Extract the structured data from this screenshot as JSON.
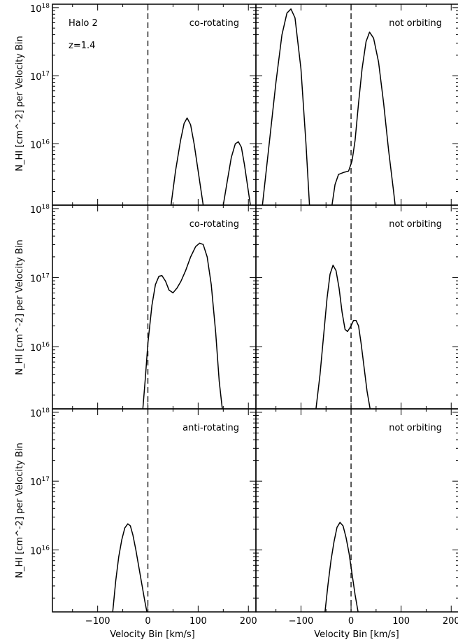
{
  "figure": {
    "ylabel": "N_HI [cm^-2] per Velocity Bin",
    "xlabel": "Velocity Bin [km/s]",
    "halo_label": "Halo 2",
    "redshift_label": "z=1.4"
  },
  "chart_data": [
    {
      "type": "line",
      "row": 0,
      "col": 0,
      "label": "co-rotating",
      "xlabel": "Velocity Bin [km/s]",
      "ylabel": "N_HI [cm^-2] per Velocity Bin",
      "xlim": [
        -190,
        215
      ],
      "ylim_log10": [
        15.1,
        18.05
      ],
      "x_ticks": [
        -100,
        0,
        100,
        200
      ],
      "y_tick_labels": [
        "10^16",
        "10^17",
        "10^18"
      ],
      "series": [
        {
          "x": [
            46,
            55,
            65,
            72,
            78,
            85,
            92,
            100,
            110
          ],
          "log10_y": [
            15.1,
            15.6,
            16.05,
            16.3,
            16.38,
            16.28,
            16.0,
            15.6,
            15.1
          ]
        },
        {
          "x": [
            150,
            158,
            166,
            174,
            180,
            186,
            192,
            198,
            204
          ],
          "log10_y": [
            15.1,
            15.45,
            15.8,
            16.0,
            16.03,
            15.95,
            15.7,
            15.4,
            15.1
          ]
        }
      ]
    },
    {
      "type": "line",
      "row": 0,
      "col": 1,
      "label": "not orbiting",
      "xlabel": "Velocity Bin [km/s]",
      "ylabel": "N_HI [cm^-2] per Velocity Bin",
      "xlim": [
        -190,
        215
      ],
      "ylim_log10": [
        15.1,
        18.05
      ],
      "x_ticks": [
        -100,
        0,
        100,
        200
      ],
      "y_tick_labels": [
        "10^16",
        "10^17",
        "10^18"
      ],
      "series": [
        {
          "x": [
            -177,
            -165,
            -150,
            -138,
            -128,
            -120,
            -112,
            -100,
            -90,
            -83
          ],
          "log10_y": [
            15.1,
            15.9,
            16.9,
            17.6,
            17.92,
            17.98,
            17.85,
            17.1,
            16.0,
            15.1
          ]
        },
        {
          "x": [
            -38,
            -32,
            -25,
            -15,
            -5,
            2,
            8,
            15,
            22,
            30,
            37,
            45,
            55,
            65,
            75,
            85,
            88
          ],
          "log10_y": [
            15.1,
            15.4,
            15.55,
            15.58,
            15.6,
            15.75,
            16.05,
            16.6,
            17.1,
            17.5,
            17.64,
            17.55,
            17.2,
            16.6,
            15.9,
            15.3,
            15.1
          ]
        }
      ]
    },
    {
      "type": "line",
      "row": 1,
      "col": 0,
      "label": "co-rotating",
      "xlabel": "Velocity Bin [km/s]",
      "ylabel": "N_HI [cm^-2] per Velocity Bin",
      "xlim": [
        -190,
        215
      ],
      "ylim_log10": [
        15.1,
        18.05
      ],
      "x_ticks": [
        -100,
        0,
        100,
        200
      ],
      "y_tick_labels": [
        "10^16",
        "10^17",
        "10^18"
      ],
      "series": [
        {
          "x": [
            -10,
            -5,
            0,
            8,
            15,
            22,
            28,
            35,
            42,
            50,
            58,
            66,
            75,
            85,
            95,
            103,
            110,
            118,
            126,
            135,
            142,
            148
          ],
          "log10_y": [
            15.1,
            15.55,
            16.05,
            16.6,
            16.9,
            17.02,
            17.03,
            16.95,
            16.82,
            16.78,
            16.85,
            16.95,
            17.1,
            17.3,
            17.45,
            17.5,
            17.48,
            17.3,
            16.9,
            16.2,
            15.5,
            15.1
          ]
        }
      ]
    },
    {
      "type": "line",
      "row": 1,
      "col": 1,
      "label": "not orbiting",
      "xlabel": "Velocity Bin [km/s]",
      "ylabel": "N_HI [cm^-2] per Velocity Bin",
      "xlim": [
        -190,
        215
      ],
      "ylim_log10": [
        15.1,
        18.05
      ],
      "x_ticks": [
        -100,
        0,
        100,
        200
      ],
      "y_tick_labels": [
        "10^16",
        "10^17",
        "10^18"
      ],
      "series": [
        {
          "x": [
            -70,
            -62,
            -55,
            -48,
            -42,
            -36,
            -30,
            -24,
            -18,
            -12,
            -7,
            0,
            5,
            10,
            15,
            20,
            26,
            32,
            38
          ],
          "log10_y": [
            15.1,
            15.6,
            16.15,
            16.7,
            17.05,
            17.18,
            17.1,
            16.85,
            16.5,
            16.25,
            16.22,
            16.3,
            16.38,
            16.38,
            16.3,
            16.05,
            15.7,
            15.35,
            15.1
          ]
        }
      ]
    },
    {
      "type": "line",
      "row": 2,
      "col": 0,
      "label": "anti-rotating",
      "xlabel": "Velocity Bin [km/s]",
      "ylabel": "N_HI [cm^-2] per Velocity Bin",
      "xlim": [
        -190,
        215
      ],
      "ylim_log10": [
        15.1,
        18.05
      ],
      "x_ticks": [
        -100,
        0,
        100,
        200
      ],
      "y_tick_labels": [
        "10^16",
        "10^17",
        "10^18"
      ],
      "series": [
        {
          "x": [
            -70,
            -64,
            -58,
            -52,
            -46,
            -40,
            -35,
            -30,
            -24,
            -18,
            -12,
            -6,
            -2
          ],
          "log10_y": [
            15.1,
            15.55,
            15.9,
            16.15,
            16.32,
            16.38,
            16.35,
            16.22,
            16.0,
            15.75,
            15.5,
            15.25,
            15.1
          ]
        }
      ]
    },
    {
      "type": "line",
      "row": 2,
      "col": 1,
      "label": "not orbiting",
      "xlabel": "Velocity Bin [km/s]",
      "ylabel": "N_HI [cm^-2] per Velocity Bin",
      "xlim": [
        -190,
        215
      ],
      "ylim_log10": [
        15.1,
        18.05
      ],
      "x_ticks": [
        -100,
        0,
        100,
        200
      ],
      "y_tick_labels": [
        "10^16",
        "10^17",
        "10^18"
      ],
      "series": [
        {
          "x": [
            -52,
            -46,
            -40,
            -34,
            -28,
            -22,
            -16,
            -10,
            -4,
            2,
            8,
            14
          ],
          "log10_y": [
            15.1,
            15.5,
            15.85,
            16.12,
            16.33,
            16.4,
            16.35,
            16.18,
            15.95,
            15.65,
            15.35,
            15.1
          ]
        }
      ]
    }
  ]
}
